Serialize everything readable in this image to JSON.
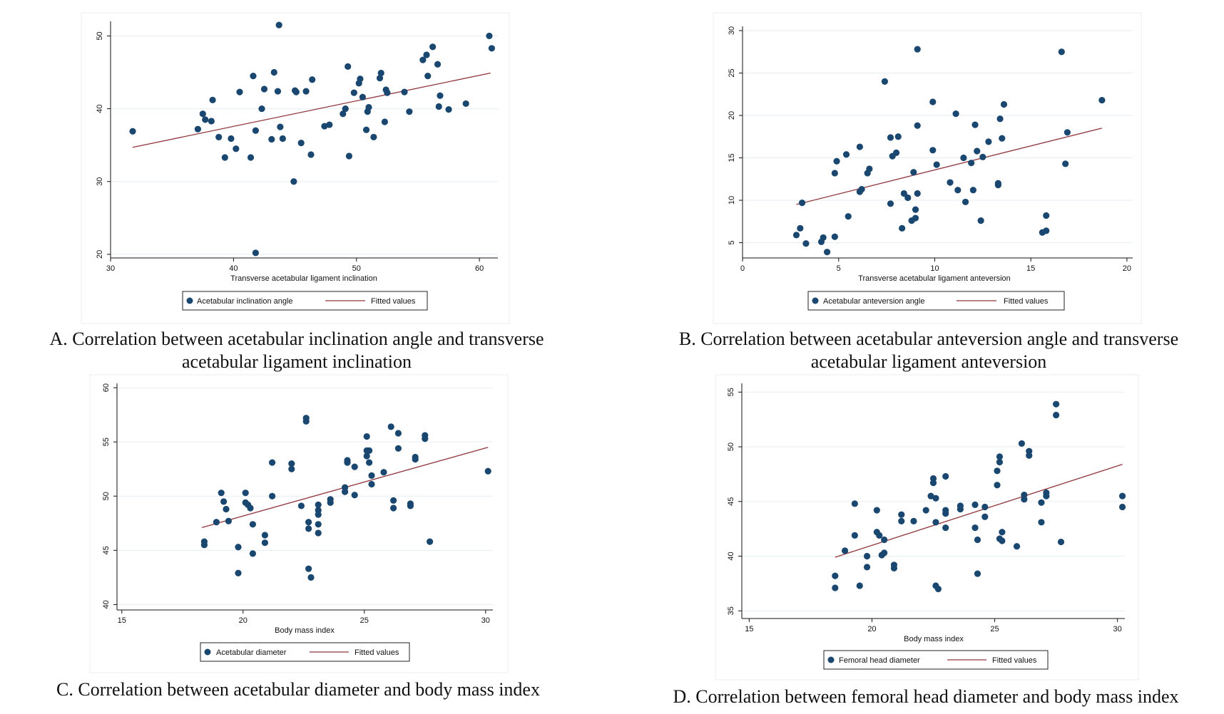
{
  "colors": {
    "points": "#1a476f",
    "fit": "#90353b",
    "axis": "#111111",
    "grid": "#e6eef3"
  },
  "chart_data": [
    {
      "type": "scatter",
      "caption_lines": [
        "A. Correlation between acetabular inclination angle and transverse",
        "acetabular ligament inclination"
      ],
      "xlabel": "Transverse acetabular ligament inclination",
      "ylabel": "",
      "xlim": [
        30,
        61.5
      ],
      "ylim": [
        19.5,
        52
      ],
      "xticks": [
        30,
        40,
        50,
        60
      ],
      "yticks": [
        20,
        30,
        40,
        50
      ],
      "grid": true,
      "legend": {
        "placement": "bottom-center",
        "entries": [
          "Acetabular inclination angle",
          "Fitted values"
        ]
      },
      "series": [
        {
          "name": "Acetabular inclination angle",
          "kind": "points",
          "x": [
            31.8,
            37.1,
            37.5,
            37.7,
            38.2,
            38.3,
            38.8,
            39.3,
            39.8,
            40.2,
            40.5,
            41.4,
            41.6,
            41.8,
            41.8,
            42.3,
            42.5,
            43.1,
            43.3,
            43.6,
            43.7,
            43.8,
            44.0,
            44.9,
            45.0,
            45.1,
            45.5,
            45.9,
            46.3,
            46.4,
            47.4,
            47.8,
            48.9,
            49.1,
            49.3,
            49.4,
            49.8,
            50.2,
            50.3,
            50.5,
            50.8,
            50.9,
            51.0,
            51.4,
            51.9,
            52.0,
            52.3,
            52.4,
            52.5,
            53.9,
            54.3,
            55.4,
            55.7,
            55.8,
            56.2,
            56.6,
            56.7,
            56.8,
            57.5,
            58.9,
            60.8,
            61.0
          ],
          "y": [
            36.9,
            37.2,
            39.3,
            38.5,
            38.3,
            41.2,
            36.1,
            33.3,
            35.9,
            34.5,
            42.3,
            33.3,
            44.5,
            37.0,
            20.2,
            40.0,
            42.7,
            35.8,
            45.0,
            42.4,
            51.5,
            37.5,
            35.9,
            30.0,
            42.5,
            42.3,
            35.3,
            42.4,
            33.7,
            44.0,
            37.6,
            37.8,
            39.3,
            40.0,
            45.8,
            33.5,
            42.2,
            43.5,
            44.1,
            41.6,
            37.1,
            39.6,
            40.2,
            36.1,
            44.2,
            44.9,
            38.2,
            42.6,
            42.2,
            42.3,
            39.6,
            46.7,
            47.4,
            44.5,
            48.5,
            46.1,
            40.3,
            41.8,
            39.9,
            40.7,
            50.0,
            48.3
          ]
        },
        {
          "name": "Fitted values",
          "kind": "line",
          "x": [
            31.8,
            60.9
          ],
          "y": [
            34.7,
            44.9
          ]
        }
      ]
    },
    {
      "type": "scatter",
      "caption_lines": [
        "B. Correlation between acetabular anteversion angle and transverse",
        "acetabular ligament anteversion"
      ],
      "xlabel": "Transverse acetabular ligament anteversion",
      "ylabel": "",
      "xlim": [
        0,
        20.3
      ],
      "ylim": [
        3.2,
        30.5
      ],
      "xticks": [
        0,
        5,
        10,
        15,
        20
      ],
      "yticks": [
        5,
        10,
        15,
        20,
        25,
        30
      ],
      "grid": true,
      "legend": {
        "placement": "bottom-center",
        "entries": [
          "Acetabular anteversion angle",
          "Fitted values"
        ]
      },
      "series": [
        {
          "name": "Acetabular anteversion angle",
          "kind": "points",
          "x": [
            2.8,
            3.0,
            3.1,
            3.3,
            4.1,
            4.2,
            4.4,
            4.8,
            4.8,
            4.9,
            5.4,
            5.5,
            6.1,
            6.1,
            6.2,
            6.5,
            6.6,
            7.4,
            7.7,
            7.7,
            7.8,
            8.0,
            8.1,
            8.3,
            8.4,
            8.6,
            8.8,
            8.9,
            9.0,
            9.0,
            9.1,
            9.1,
            9.1,
            9.9,
            9.9,
            10.1,
            10.8,
            11.1,
            11.2,
            11.5,
            11.6,
            11.9,
            12.0,
            12.1,
            12.2,
            12.4,
            12.5,
            12.8,
            13.3,
            13.3,
            13.4,
            13.5,
            13.6,
            15.6,
            15.8,
            15.8,
            16.6,
            16.8,
            16.9,
            18.7
          ],
          "y": [
            5.9,
            6.7,
            9.7,
            4.9,
            5.1,
            5.6,
            3.9,
            5.7,
            13.2,
            14.6,
            15.4,
            8.1,
            16.3,
            11.0,
            11.3,
            13.2,
            13.7,
            24.0,
            17.4,
            9.6,
            15.2,
            15.6,
            17.5,
            6.7,
            10.8,
            10.3,
            7.6,
            13.3,
            7.9,
            8.9,
            10.8,
            18.8,
            27.8,
            15.9,
            21.6,
            14.2,
            12.1,
            20.2,
            11.2,
            15.0,
            9.8,
            14.4,
            11.2,
            18.9,
            15.8,
            7.6,
            15.1,
            16.9,
            11.8,
            12.0,
            19.6,
            17.3,
            21.3,
            6.2,
            6.4,
            8.2,
            27.5,
            14.3,
            18.0,
            21.8
          ]
        },
        {
          "name": "Fitted values",
          "kind": "line",
          "x": [
            2.8,
            18.7
          ],
          "y": [
            9.5,
            18.5
          ]
        }
      ]
    },
    {
      "type": "scatter",
      "caption_lines": [
        "C. Correlation between acetabular diameter and body mass index"
      ],
      "xlabel": "Body mass index",
      "ylabel": "",
      "xlim": [
        14.8,
        30.3
      ],
      "ylim": [
        39.5,
        60.4
      ],
      "xticks": [
        15,
        20,
        25,
        30
      ],
      "yticks": [
        40,
        45,
        50,
        55,
        60
      ],
      "grid": true,
      "legend": {
        "placement": "bottom-center",
        "entries": [
          "Acetabular diameter",
          "Fitted values"
        ]
      },
      "series": [
        {
          "name": "Acetabular diameter",
          "kind": "points",
          "x": [
            18.4,
            18.4,
            18.9,
            19.1,
            19.2,
            19.3,
            19.4,
            19.8,
            19.8,
            20.1,
            20.1,
            20.2,
            20.3,
            20.4,
            20.4,
            20.9,
            20.9,
            21.2,
            21.2,
            22.0,
            22.0,
            22.4,
            22.6,
            22.6,
            22.7,
            22.7,
            22.7,
            22.8,
            23.1,
            23.1,
            23.1,
            23.1,
            23.1,
            23.6,
            23.6,
            24.2,
            24.2,
            24.3,
            24.3,
            24.6,
            24.6,
            25.1,
            25.1,
            25.1,
            25.2,
            25.2,
            25.3,
            25.3,
            25.8,
            26.1,
            26.2,
            26.2,
            26.4,
            26.4,
            26.9,
            26.9,
            27.1,
            27.1,
            27.5,
            27.5,
            27.7,
            30.1
          ],
          "y": [
            45.8,
            45.5,
            47.6,
            50.3,
            49.5,
            48.8,
            47.7,
            45.3,
            42.9,
            50.3,
            49.4,
            49.2,
            48.9,
            47.4,
            44.7,
            46.4,
            45.7,
            53.1,
            50.0,
            53.0,
            52.5,
            49.1,
            56.9,
            57.2,
            47.6,
            47.0,
            43.3,
            42.5,
            49.2,
            48.7,
            48.3,
            47.4,
            46.6,
            49.7,
            49.4,
            50.8,
            50.4,
            53.3,
            53.1,
            52.7,
            50.1,
            55.5,
            54.2,
            53.7,
            53.1,
            54.2,
            51.9,
            51.1,
            52.2,
            56.4,
            49.6,
            48.9,
            55.8,
            54.4,
            49.3,
            49.1,
            53.6,
            53.4,
            55.6,
            55.3,
            45.8,
            52.3
          ]
        },
        {
          "name": "Fitted values",
          "kind": "line",
          "x": [
            18.3,
            30.1
          ],
          "y": [
            47.1,
            54.5
          ]
        }
      ]
    },
    {
      "type": "scatter",
      "caption_lines": [
        "D. Correlation between femoral head diameter and body mass index"
      ],
      "xlabel": "Body mass index",
      "ylabel": "",
      "xlim": [
        14.7,
        30.3
      ],
      "ylim": [
        34.3,
        55.8
      ],
      "xticks": [
        15,
        20,
        25,
        30
      ],
      "yticks": [
        35,
        40,
        45,
        50,
        55
      ],
      "grid": true,
      "legend": {
        "placement": "bottom-center",
        "entries": [
          "Femoral head diameter",
          "Fitted values"
        ]
      },
      "series": [
        {
          "name": "Femoral head diameter",
          "kind": "points",
          "x": [
            18.5,
            18.5,
            18.9,
            19.3,
            19.3,
            19.5,
            19.8,
            19.8,
            20.2,
            20.2,
            20.3,
            20.4,
            20.5,
            20.5,
            20.9,
            20.9,
            21.2,
            21.2,
            21.7,
            22.2,
            22.4,
            22.5,
            22.5,
            22.6,
            22.6,
            22.6,
            22.7,
            23.0,
            23.0,
            23.0,
            23.0,
            23.6,
            23.6,
            24.2,
            24.2,
            24.3,
            24.3,
            24.6,
            24.6,
            25.1,
            25.1,
            25.2,
            25.2,
            25.2,
            25.3,
            25.3,
            25.9,
            26.1,
            26.2,
            26.2,
            26.4,
            26.4,
            26.9,
            26.9,
            27.1,
            27.1,
            27.5,
            27.5,
            27.7,
            30.2,
            30.2
          ],
          "y": [
            38.2,
            37.1,
            40.5,
            44.8,
            41.9,
            37.3,
            40.0,
            39.0,
            44.2,
            42.2,
            41.9,
            40.1,
            40.3,
            41.5,
            39.2,
            38.9,
            43.8,
            43.2,
            43.2,
            44.2,
            45.5,
            46.7,
            47.1,
            45.3,
            43.1,
            37.3,
            37.0,
            47.3,
            44.2,
            43.9,
            42.6,
            44.6,
            44.3,
            44.7,
            42.6,
            41.5,
            38.4,
            44.5,
            43.6,
            47.8,
            46.5,
            49.1,
            48.6,
            41.6,
            42.2,
            41.4,
            40.9,
            50.3,
            45.6,
            45.2,
            49.6,
            49.2,
            44.9,
            43.1,
            45.8,
            45.5,
            53.9,
            52.9,
            41.3,
            45.5,
            44.5
          ]
        },
        {
          "name": "Fitted values",
          "kind": "line",
          "x": [
            18.5,
            30.2
          ],
          "y": [
            39.9,
            48.4
          ]
        }
      ]
    }
  ]
}
